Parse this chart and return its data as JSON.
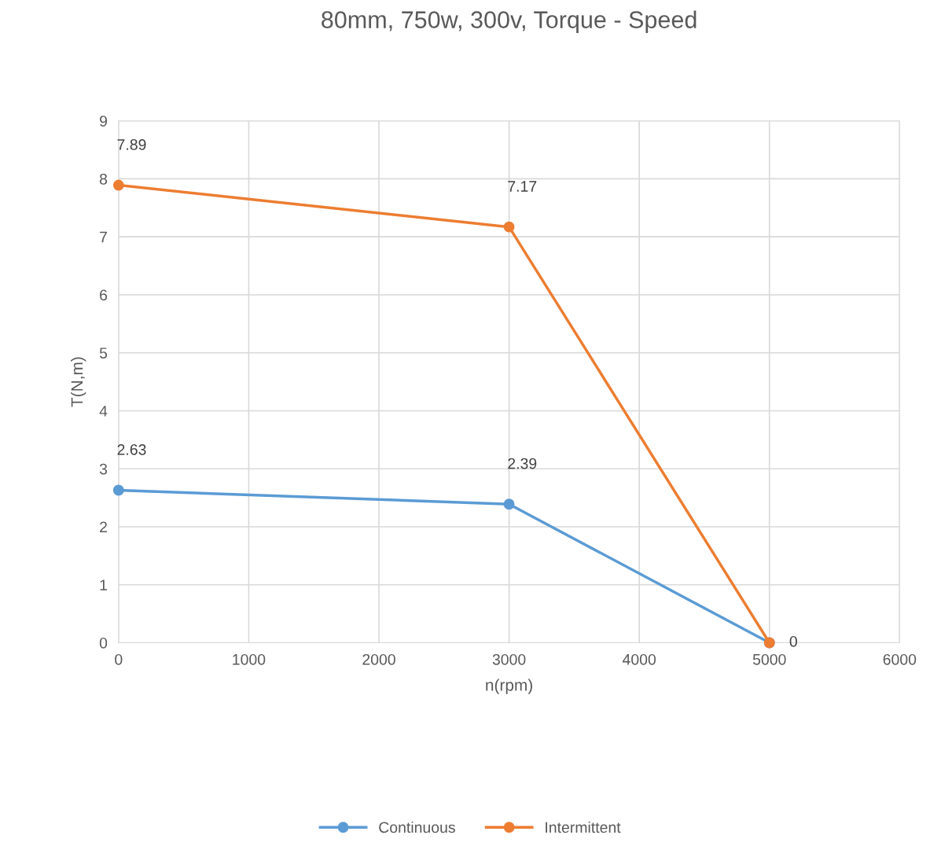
{
  "chart_data": {
    "type": "line",
    "title": "80mm, 750w, 300v, Torque - Speed",
    "xlabel": "n(rpm)",
    "ylabel": "T(N,m)",
    "x": [
      0,
      3000,
      5000
    ],
    "series": [
      {
        "name": "Continuous",
        "color": "#5b9bd5",
        "values": [
          2.63,
          2.39,
          0
        ],
        "value_labels": [
          "2.63",
          "2.39",
          null
        ]
      },
      {
        "name": "Intermittent",
        "color": "#ed7d31",
        "values": [
          7.89,
          7.17,
          0
        ],
        "value_labels": [
          "7.89",
          "7.17",
          "0"
        ]
      }
    ],
    "xlim": [
      0,
      6000
    ],
    "xticks": [
      0,
      1000,
      2000,
      3000,
      4000,
      5000,
      6000
    ],
    "ylim": [
      0,
      9
    ],
    "yticks": [
      0,
      1,
      2,
      3,
      4,
      5,
      6,
      7,
      8,
      9
    ],
    "grid": true,
    "legend": "bottom",
    "marker": "circle",
    "line_style": "solid"
  }
}
